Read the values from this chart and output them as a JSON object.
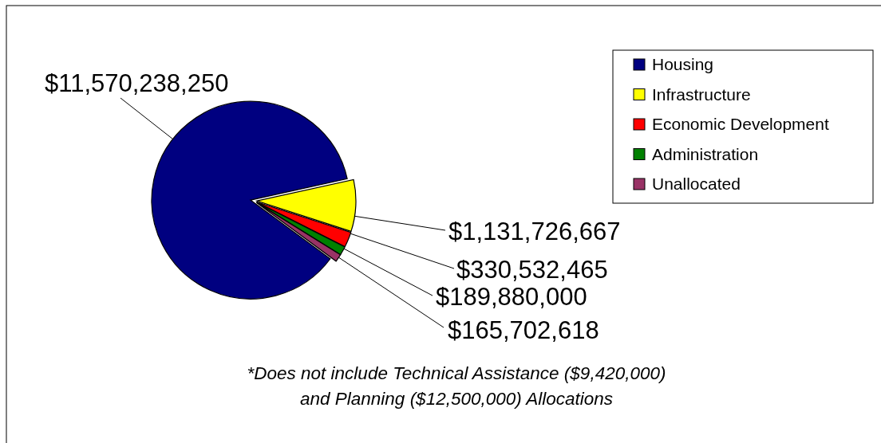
{
  "chart_data": {
    "type": "pie",
    "categories": [
      "Housing",
      "Infrastructure",
      "Economic Development",
      "Administration",
      "Unallocated"
    ],
    "values": [
      11570238250,
      1131726667,
      330532465,
      189880000,
      165702618
    ],
    "value_labels": [
      "$11,570,238,250",
      "$1,131,726,667",
      "$330,532,465",
      "$189,880,000",
      "$165,702,618"
    ],
    "colors": [
      "#000080",
      "#ffff00",
      "#ff0000",
      "#008000",
      "#993366"
    ],
    "legend": "top right",
    "annotations": [
      "*Does not include Technical Assistance ($9,420,000)",
      "and Planning ($12,500,000) Allocations"
    ]
  }
}
